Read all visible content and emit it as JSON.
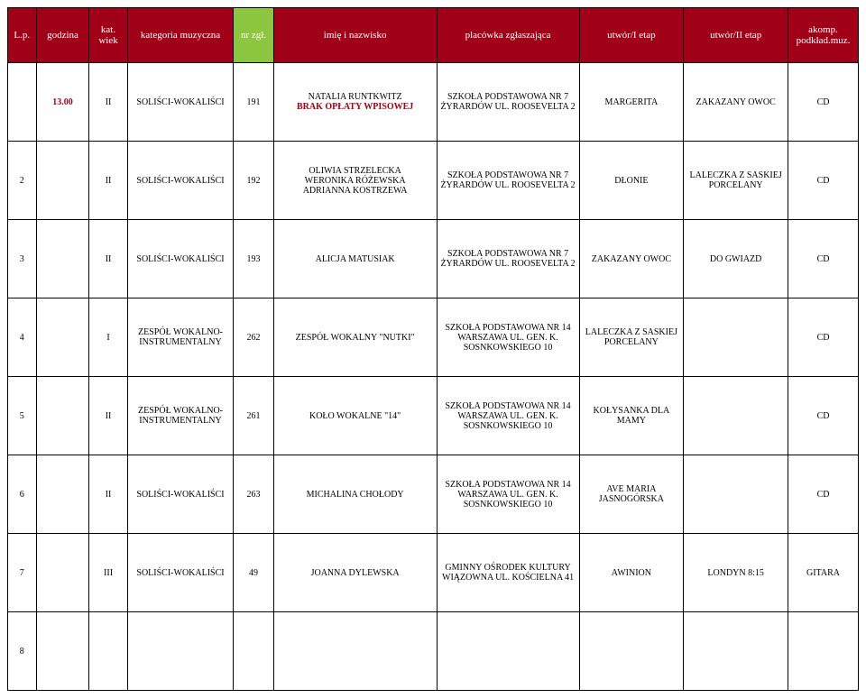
{
  "header": {
    "lp": "L.p.",
    "godzina": "godzina",
    "wiek": "kat.\nwiek",
    "kategoria": "kategoria muzyczna",
    "nrzgl": "nr zgł.",
    "name": "imię i nazwisko",
    "place": "placówka zgłaszająca",
    "u1": "utwór/I etap",
    "u2": "utwór/II etap",
    "akomp": "akomp. podkład.muz."
  },
  "rows": [
    {
      "lp": "",
      "godzina": "13.00",
      "wiek": "II",
      "kategoria": "SOLIŚCI-WOKALIŚCI",
      "nrzgl": "191",
      "name_line1": "NATALIA RUNTKWITZ",
      "name_line2": "BRAK OPŁATY WPISOWEJ",
      "place": "SZKOŁA PODSTAWOWA NR 7 ŻYRARDÓW UL. ROOSEVELTA 2",
      "u1": "MARGERITA",
      "u2": "ZAKAZANY OWOC",
      "akomp": "CD"
    },
    {
      "lp": "2",
      "godzina": "",
      "wiek": "II",
      "kategoria": "SOLIŚCI-WOKALIŚCI",
      "nrzgl": "192",
      "name_line1": "OLIWIA STRZELECKA\nWERONIKA RÓŻEWSKA\nADRIANNA KOSTRZEWA",
      "name_line2": "",
      "place": "SZKOŁA PODSTAWOWA NR 7 ŻYRARDÓW UL. ROOSEVELTA 2",
      "u1": "DŁONIE",
      "u2": "LALECZKA Z SASKIEJ PORCELANY",
      "akomp": "CD"
    },
    {
      "lp": "3",
      "godzina": "",
      "wiek": "II",
      "kategoria": "SOLIŚCI-WOKALIŚCI",
      "nrzgl": "193",
      "name_line1": "ALICJA MATUSIAK",
      "name_line2": "",
      "place": "SZKOŁA PODSTAWOWA NR 7 ŻYRARDÓW UL. ROOSEVELTA 2",
      "u1": "ZAKAZANY OWOC",
      "u2": "DO GWIAZD",
      "akomp": "CD"
    },
    {
      "lp": "4",
      "godzina": "",
      "wiek": "I",
      "kategoria": "ZESPÓŁ WOKALNO-INSTRUMENTALNY",
      "nrzgl": "262",
      "name_line1": "ZESPÓŁ WOKALNY \"NUTKI\"",
      "name_line2": "",
      "place": "SZKOŁA PODSTAWOWA NR 14 WARSZAWA UL. GEN. K. SOSNKOWSKIEGO 10",
      "u1": "LALECZKA Z SASKIEJ PORCELANY",
      "u2": "",
      "akomp": "CD"
    },
    {
      "lp": "5",
      "godzina": "",
      "wiek": "II",
      "kategoria": "ZESPÓŁ WOKALNO-INSTRUMENTALNY",
      "nrzgl": "261",
      "name_line1": "KOŁO WOKALNE \"14\"",
      "name_line2": "",
      "place": "SZKOŁA PODSTAWOWA NR 14 WARSZAWA UL. GEN. K. SOSNKOWSKIEGO 10",
      "u1": "KOŁYSANKA DLA MAMY",
      "u2": "",
      "akomp": "CD"
    },
    {
      "lp": "6",
      "godzina": "",
      "wiek": "II",
      "kategoria": "SOLIŚCI-WOKALIŚCI",
      "nrzgl": "263",
      "name_line1": "MICHALINA CHOŁODY",
      "name_line2": "",
      "place": "SZKOŁA PODSTAWOWA NR 14 WARSZAWA UL. GEN. K. SOSNKOWSKIEGO 10",
      "u1": "AVE MARIA JASNOGÓRSKA",
      "u2": "",
      "akomp": "CD"
    },
    {
      "lp": "7",
      "godzina": "",
      "wiek": "III",
      "kategoria": "SOLIŚCI-WOKALIŚCI",
      "nrzgl": "49",
      "name_line1": "JOANNA DYLEWSKA",
      "name_line2": "",
      "place": "GMINNY OŚRODEK KULTURY WIĄZOWNA UL. KOŚCIELNA 41",
      "u1": "AWINION",
      "u2": "LONDYN 8:15",
      "akomp": "GITARA"
    },
    {
      "lp": "8",
      "godzina": "",
      "wiek": "",
      "kategoria": "",
      "nrzgl": "",
      "name_line1": "",
      "name_line2": "",
      "place": "",
      "u1": "",
      "u2": "",
      "akomp": ""
    }
  ]
}
